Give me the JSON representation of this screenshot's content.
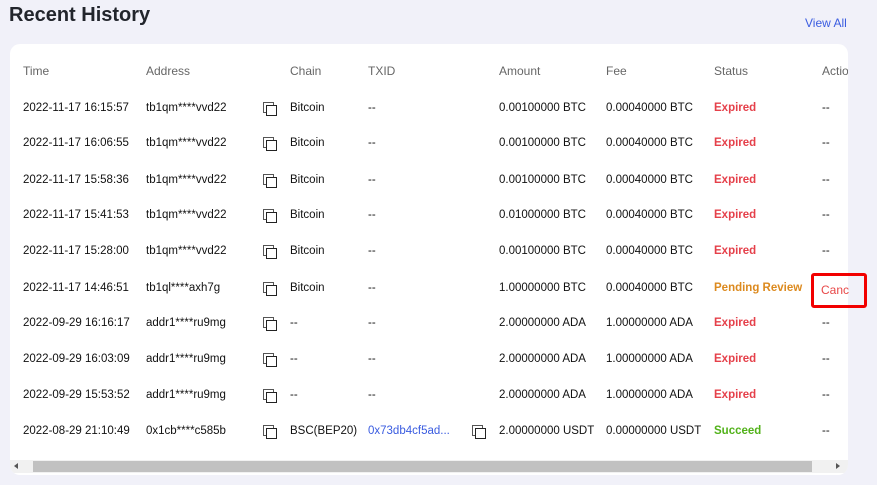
{
  "title": "Recent History",
  "view_all": "View All",
  "colors": {
    "expired": "#e5404a",
    "pending": "#dc8a1f",
    "succeed": "#52b21a",
    "link": "#3a5ce0",
    "highlight": "#f20000"
  },
  "headers": {
    "time": "Time",
    "address": "Address",
    "chain": "Chain",
    "txid": "TXID",
    "amount": "Amount",
    "fee": "Fee",
    "status": "Status",
    "action": "Actio"
  },
  "rows": [
    {
      "time": "2022-11-17 16:15:57",
      "address": "tb1qm****vvd22",
      "chain": "Bitcoin",
      "txid": "--",
      "amount": "0.00100000 BTC",
      "fee": "0.00040000 BTC",
      "status": "Expired",
      "action": "--"
    },
    {
      "time": "2022-11-17 16:06:55",
      "address": "tb1qm****vvd22",
      "chain": "Bitcoin",
      "txid": "--",
      "amount": "0.00100000 BTC",
      "fee": "0.00040000 BTC",
      "status": "Expired",
      "action": "--"
    },
    {
      "time": "2022-11-17 15:58:36",
      "address": "tb1qm****vvd22",
      "chain": "Bitcoin",
      "txid": "--",
      "amount": "0.00100000 BTC",
      "fee": "0.00040000 BTC",
      "status": "Expired",
      "action": "--"
    },
    {
      "time": "2022-11-17 15:41:53",
      "address": "tb1qm****vvd22",
      "chain": "Bitcoin",
      "txid": "--",
      "amount": "0.01000000 BTC",
      "fee": "0.00040000 BTC",
      "status": "Expired",
      "action": "--"
    },
    {
      "time": "2022-11-17 15:28:00",
      "address": "tb1qm****vvd22",
      "chain": "Bitcoin",
      "txid": "--",
      "amount": "0.00100000 BTC",
      "fee": "0.00040000 BTC",
      "status": "Expired",
      "action": "--"
    },
    {
      "time": "2022-11-17 14:46:51",
      "address": "tb1ql****axh7g",
      "chain": "Bitcoin",
      "txid": "--",
      "amount": "1.00000000 BTC",
      "fee": "0.00040000 BTC",
      "status": "Pending Review",
      "action": "Canc"
    },
    {
      "time": "2022-09-29 16:16:17",
      "address": "addr1****ru9mg",
      "chain": "--",
      "txid": "--",
      "amount": "2.00000000 ADA",
      "fee": "1.00000000 ADA",
      "status": "Expired",
      "action": "--"
    },
    {
      "time": "2022-09-29 16:03:09",
      "address": "addr1****ru9mg",
      "chain": "--",
      "txid": "--",
      "amount": "2.00000000 ADA",
      "fee": "1.00000000 ADA",
      "status": "Expired",
      "action": "--"
    },
    {
      "time": "2022-09-29 15:53:52",
      "address": "addr1****ru9mg",
      "chain": "--",
      "txid": "--",
      "amount": "2.00000000 ADA",
      "fee": "1.00000000 ADA",
      "status": "Expired",
      "action": "--"
    },
    {
      "time": "2022-08-29 21:10:49",
      "address": "0x1cb****c585b",
      "chain": "BSC(BEP20)",
      "txid": "0x73db4cf5ad...",
      "amount": "2.00000000 USDT",
      "fee": "0.00000000 USDT",
      "status": "Succeed",
      "action": "--"
    }
  ]
}
